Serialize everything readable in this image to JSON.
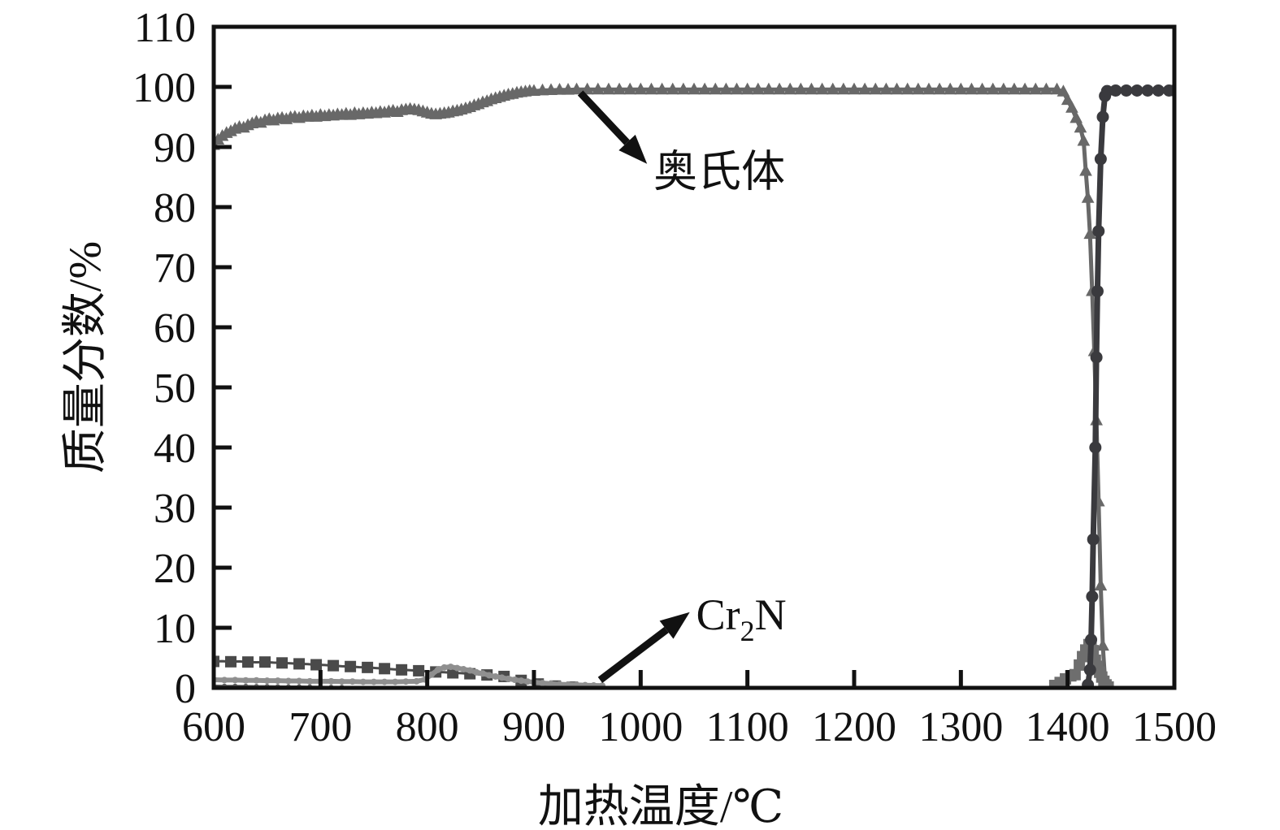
{
  "chart_data": {
    "type": "line",
    "title": "",
    "xlabel": "加热温度/℃",
    "ylabel": "质量分数/%",
    "xlim": [
      600,
      1500
    ],
    "ylim": [
      0,
      110
    ],
    "grid": false,
    "legend_position": "none",
    "axis_color": "#111111",
    "xticks": [
      "600",
      "700",
      "800",
      "900",
      "1000",
      "1100",
      "1200",
      "1300",
      "1400",
      "1500"
    ],
    "yticks": [
      "0",
      "10",
      "20",
      "30",
      "40",
      "50",
      "60",
      "70",
      "80",
      "90",
      "100",
      "110"
    ],
    "annotations": [
      {
        "text": "奥氏体",
        "formula": [
          [
            "奥氏体",
            false
          ]
        ],
        "text_at": [
          1012,
          86.0
        ],
        "arrow_from": [
          943.5,
          99.0
        ],
        "arrow_to": [
          1006,
          87.2
        ]
      },
      {
        "text": "Cr2N",
        "formula": [
          [
            "Cr",
            false
          ],
          [
            "2",
            true
          ],
          [
            "N",
            false
          ]
        ],
        "text_at": [
          1052,
          12.3
        ],
        "arrow_from": [
          962,
          1.3
        ],
        "arrow_to": [
          1046,
          12.6
        ]
      }
    ],
    "series": [
      {
        "name": "austenite",
        "label": "奥氏体",
        "marker": "triangle",
        "color": "#686868",
        "line_width": 5,
        "marker_size": 14,
        "marker_every": 1,
        "points": [
          [
            600,
            90.3
          ],
          [
            604,
            91.2
          ],
          [
            608,
            91.8
          ],
          [
            612,
            92.3
          ],
          [
            616,
            92.6
          ],
          [
            620,
            93.0
          ],
          [
            624,
            93.3
          ],
          [
            628,
            93.2
          ],
          [
            632,
            93.6
          ],
          [
            636,
            93.9
          ],
          [
            640,
            94.2
          ],
          [
            644,
            94.0
          ],
          [
            648,
            94.4
          ],
          [
            652,
            94.6
          ],
          [
            656,
            94.4
          ],
          [
            660,
            94.7
          ],
          [
            664,
            94.8
          ],
          [
            668,
            94.6
          ],
          [
            672,
            94.9
          ],
          [
            676,
            95.0
          ],
          [
            680,
            94.8
          ],
          [
            684,
            95.1
          ],
          [
            688,
            95.0
          ],
          [
            692,
            95.2
          ],
          [
            696,
            95.0
          ],
          [
            700,
            95.3
          ],
          [
            704,
            95.1
          ],
          [
            708,
            95.3
          ],
          [
            712,
            95.2
          ],
          [
            716,
            95.4
          ],
          [
            720,
            95.3
          ],
          [
            724,
            95.5
          ],
          [
            728,
            95.3
          ],
          [
            732,
            95.6
          ],
          [
            736,
            95.4
          ],
          [
            740,
            95.6
          ],
          [
            744,
            95.5
          ],
          [
            748,
            95.7
          ],
          [
            752,
            95.6
          ],
          [
            756,
            95.8
          ],
          [
            760,
            95.7
          ],
          [
            764,
            95.9
          ],
          [
            768,
            96.0
          ],
          [
            772,
            95.8
          ],
          [
            776,
            96.1
          ],
          [
            780,
            96.2
          ],
          [
            784,
            96.3
          ],
          [
            788,
            96.2
          ],
          [
            792,
            96.1
          ],
          [
            796,
            95.9
          ],
          [
            800,
            95.7
          ],
          [
            804,
            95.5
          ],
          [
            808,
            95.4
          ],
          [
            812,
            95.5
          ],
          [
            816,
            95.6
          ],
          [
            820,
            95.7
          ],
          [
            824,
            95.9
          ],
          [
            828,
            96.0
          ],
          [
            832,
            96.2
          ],
          [
            836,
            96.4
          ],
          [
            840,
            96.6
          ],
          [
            844,
            96.9
          ],
          [
            848,
            97.1
          ],
          [
            852,
            97.4
          ],
          [
            856,
            97.6
          ],
          [
            860,
            97.9
          ],
          [
            864,
            98.1
          ],
          [
            868,
            98.3
          ],
          [
            872,
            98.5
          ],
          [
            876,
            98.7
          ],
          [
            880,
            98.8
          ],
          [
            884,
            99.0
          ],
          [
            888,
            99.1
          ],
          [
            892,
            99.2
          ],
          [
            896,
            99.3
          ],
          [
            900,
            99.3
          ],
          [
            908,
            99.4
          ],
          [
            916,
            99.45
          ],
          [
            924,
            99.5
          ],
          [
            932,
            99.5
          ],
          [
            940,
            99.55
          ],
          [
            950,
            99.55
          ],
          [
            960,
            99.55
          ],
          [
            970,
            99.55
          ],
          [
            980,
            99.55
          ],
          [
            990,
            99.55
          ],
          [
            1000,
            99.55
          ],
          [
            1010,
            99.55
          ],
          [
            1020,
            99.55
          ],
          [
            1030,
            99.55
          ],
          [
            1040,
            99.55
          ],
          [
            1050,
            99.55
          ],
          [
            1060,
            99.55
          ],
          [
            1070,
            99.55
          ],
          [
            1080,
            99.55
          ],
          [
            1090,
            99.55
          ],
          [
            1100,
            99.55
          ],
          [
            1110,
            99.55
          ],
          [
            1120,
            99.55
          ],
          [
            1130,
            99.55
          ],
          [
            1140,
            99.55
          ],
          [
            1150,
            99.55
          ],
          [
            1160,
            99.55
          ],
          [
            1170,
            99.55
          ],
          [
            1180,
            99.55
          ],
          [
            1190,
            99.55
          ],
          [
            1200,
            99.55
          ],
          [
            1210,
            99.55
          ],
          [
            1220,
            99.55
          ],
          [
            1230,
            99.55
          ],
          [
            1240,
            99.55
          ],
          [
            1250,
            99.55
          ],
          [
            1260,
            99.55
          ],
          [
            1270,
            99.55
          ],
          [
            1280,
            99.55
          ],
          [
            1290,
            99.55
          ],
          [
            1300,
            99.55
          ],
          [
            1310,
            99.55
          ],
          [
            1320,
            99.55
          ],
          [
            1330,
            99.55
          ],
          [
            1340,
            99.55
          ],
          [
            1350,
            99.55
          ],
          [
            1360,
            99.55
          ],
          [
            1370,
            99.55
          ],
          [
            1380,
            99.55
          ],
          [
            1390,
            99.55
          ],
          [
            1396,
            99.2
          ],
          [
            1400,
            97.8
          ],
          [
            1404,
            96.5
          ],
          [
            1408,
            94.8
          ],
          [
            1412,
            93.2
          ],
          [
            1415,
            91.0
          ],
          [
            1417,
            86.0
          ],
          [
            1419,
            81.5
          ],
          [
            1421,
            75.5
          ],
          [
            1423,
            66.0
          ],
          [
            1425,
            56.0
          ],
          [
            1427,
            44.5
          ],
          [
            1429,
            31.0
          ],
          [
            1431,
            17.0
          ],
          [
            1433,
            7.0
          ],
          [
            1435,
            1.5
          ],
          [
            1436,
            0.2
          ]
        ]
      },
      {
        "name": "dark-squares-low",
        "label": "",
        "marker": "square",
        "color": "#4a4a4a",
        "line_width": 3,
        "marker_size": 14,
        "marker_every": 2,
        "points": [
          [
            600,
            4.4
          ],
          [
            608,
            4.45
          ],
          [
            616,
            4.35
          ],
          [
            624,
            4.4
          ],
          [
            632,
            4.3
          ],
          [
            640,
            4.25
          ],
          [
            648,
            4.3
          ],
          [
            656,
            4.2
          ],
          [
            664,
            4.15
          ],
          [
            672,
            4.1
          ],
          [
            680,
            4.0
          ],
          [
            688,
            3.95
          ],
          [
            696,
            3.85
          ],
          [
            704,
            3.8
          ],
          [
            712,
            3.7
          ],
          [
            720,
            3.6
          ],
          [
            728,
            3.55
          ],
          [
            736,
            3.45
          ],
          [
            744,
            3.4
          ],
          [
            752,
            3.3
          ],
          [
            760,
            3.2
          ],
          [
            768,
            3.1
          ],
          [
            776,
            3.0
          ],
          [
            784,
            2.95
          ],
          [
            792,
            2.85
          ],
          [
            800,
            2.75
          ],
          [
            808,
            2.65
          ],
          [
            816,
            2.6
          ],
          [
            824,
            2.5
          ],
          [
            832,
            2.45
          ],
          [
            840,
            2.35
          ],
          [
            848,
            2.25
          ],
          [
            856,
            2.15
          ],
          [
            864,
            2.05
          ],
          [
            872,
            1.9
          ],
          [
            880,
            1.6
          ],
          [
            888,
            1.25
          ],
          [
            896,
            0.9
          ],
          [
            904,
            0.65
          ],
          [
            912,
            0.45
          ],
          [
            920,
            0.3
          ],
          [
            928,
            0.2
          ],
          [
            936,
            0.12
          ],
          [
            944,
            0.06
          ]
        ]
      },
      {
        "name": "cr2n",
        "label": "Cr2N",
        "marker": "dot",
        "color": "#8f8f8f",
        "line_width": 6,
        "marker_size": 8,
        "marker_every": 1,
        "points": [
          [
            600,
            1.35
          ],
          [
            610,
            1.3
          ],
          [
            620,
            1.3
          ],
          [
            630,
            1.25
          ],
          [
            640,
            1.25
          ],
          [
            650,
            1.2
          ],
          [
            660,
            1.2
          ],
          [
            670,
            1.15
          ],
          [
            680,
            1.15
          ],
          [
            690,
            1.1
          ],
          [
            700,
            1.1
          ],
          [
            710,
            1.1
          ],
          [
            720,
            1.05
          ],
          [
            730,
            1.05
          ],
          [
            740,
            1.0
          ],
          [
            750,
            1.0
          ],
          [
            760,
            1.0
          ],
          [
            770,
            1.0
          ],
          [
            780,
            1.05
          ],
          [
            790,
            1.1
          ],
          [
            798,
            1.4
          ],
          [
            804,
            2.2
          ],
          [
            810,
            3.0
          ],
          [
            816,
            3.4
          ],
          [
            822,
            3.5
          ],
          [
            828,
            3.3
          ],
          [
            834,
            3.1
          ],
          [
            840,
            2.9
          ],
          [
            846,
            2.6
          ],
          [
            852,
            2.4
          ],
          [
            858,
            2.1
          ],
          [
            864,
            1.9
          ],
          [
            870,
            1.7
          ],
          [
            876,
            1.5
          ],
          [
            882,
            1.35
          ],
          [
            888,
            1.2
          ],
          [
            894,
            1.05
          ],
          [
            900,
            0.95
          ],
          [
            908,
            0.8
          ],
          [
            916,
            0.7
          ],
          [
            924,
            0.6
          ],
          [
            932,
            0.55
          ],
          [
            940,
            0.5
          ],
          [
            948,
            0.45
          ],
          [
            956,
            0.4
          ],
          [
            964,
            0.38
          ]
        ]
      },
      {
        "name": "dark-dots-near-zero",
        "label": "",
        "marker": "dot",
        "color": "#5c5c5c",
        "line_width": 3,
        "marker_size": 6,
        "marker_every": 1,
        "points": [
          [
            600,
            0.35
          ],
          [
            610,
            0.3
          ],
          [
            620,
            0.3
          ],
          [
            630,
            0.28
          ],
          [
            640,
            0.26
          ],
          [
            650,
            0.25
          ],
          [
            660,
            0.22
          ],
          [
            670,
            0.2
          ],
          [
            680,
            0.2
          ],
          [
            690,
            0.18
          ],
          [
            700,
            0.15
          ],
          [
            710,
            0.12
          ],
          [
            720,
            0.1
          ]
        ]
      },
      {
        "name": "melting-spike-squares",
        "label": "",
        "marker": "square",
        "color": "#6e6e6e",
        "line_width": 3,
        "marker_size": 14,
        "marker_every": 1,
        "points": [
          [
            1388,
            0.4
          ],
          [
            1393,
            0.9
          ],
          [
            1398,
            1.5
          ],
          [
            1403,
            2.0
          ],
          [
            1407,
            2.2
          ],
          [
            1411,
            3.8
          ],
          [
            1414,
            5.2
          ],
          [
            1417,
            6.3
          ],
          [
            1420,
            7.2
          ],
          [
            1422,
            7.4
          ],
          [
            1424,
            6.2
          ],
          [
            1426,
            4.6
          ],
          [
            1428,
            3.6
          ],
          [
            1430,
            2.6
          ],
          [
            1432,
            1.8
          ],
          [
            1434,
            1.1
          ],
          [
            1436,
            0.5
          ],
          [
            1438,
            0.15
          ]
        ]
      },
      {
        "name": "dark-circles-liquid",
        "label": "",
        "marker": "circle",
        "color": "#3a3a3e",
        "line_width": 7,
        "marker_size": 15,
        "marker_every": 1,
        "points": [
          [
            1419,
            0.5
          ],
          [
            1421,
            3.0
          ],
          [
            1422,
            8.0
          ],
          [
            1423,
            15.2
          ],
          [
            1424,
            24.7
          ],
          [
            1426,
            40.0
          ],
          [
            1427,
            55.0
          ],
          [
            1428,
            66.0
          ],
          [
            1429,
            76.0
          ],
          [
            1431,
            88.0
          ],
          [
            1433,
            95.0
          ],
          [
            1435,
            98.5
          ],
          [
            1437,
            99.3
          ],
          [
            1445,
            99.4
          ],
          [
            1455,
            99.4
          ],
          [
            1465,
            99.4
          ],
          [
            1475,
            99.4
          ],
          [
            1485,
            99.4
          ],
          [
            1495,
            99.4
          ],
          [
            1500,
            99.4
          ]
        ]
      }
    ]
  }
}
